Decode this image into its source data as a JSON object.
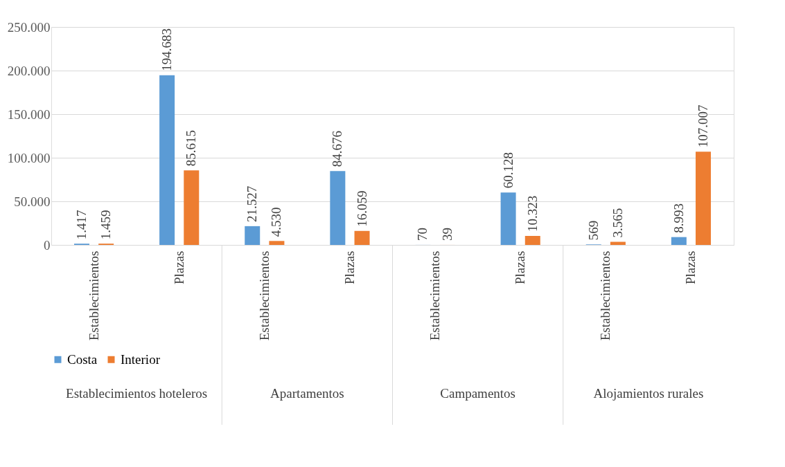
{
  "chart_data": {
    "type": "bar",
    "categories": [
      "Establecimientos",
      "Plazas",
      "Establecimientos",
      "Plazas",
      "Establecimientos",
      "Plazas",
      "Establecimientos",
      "Plazas"
    ],
    "series": [
      {
        "name": "Costa",
        "color": "#5b9bd5",
        "values": [
          1417,
          194683,
          21527,
          84676,
          70,
          60128,
          569,
          8993
        ],
        "value_labels": [
          "1.417",
          "194.683",
          "21.527",
          "84.676",
          "70",
          "60.128",
          "569",
          "8.993"
        ]
      },
      {
        "name": "Interior",
        "color": "#ed7d31",
        "values": [
          1459,
          85615,
          4530,
          16059,
          39,
          10323,
          3565,
          107007
        ],
        "value_labels": [
          "1.459",
          "85.615",
          "4.530",
          "16.059",
          "39",
          "10.323",
          "3.565",
          "107.007"
        ]
      }
    ],
    "annotations": [
      "Establecimientos hoteleros",
      "Apartamentos",
      "Campamentos",
      "Alojamientos rurales"
    ],
    "ylim": [
      0,
      250000
    ],
    "yticks": [
      0,
      {
        "value": 50000,
        "label": "50.000"
      },
      {
        "value": 100000,
        "label": "100.000"
      },
      {
        "value": 150000,
        "label": "150.000"
      },
      {
        "value": 200000,
        "label": "200.000"
      },
      {
        "value": 250000,
        "label": "250.000"
      }
    ],
    "grid": "y",
    "legend": "bottom"
  }
}
